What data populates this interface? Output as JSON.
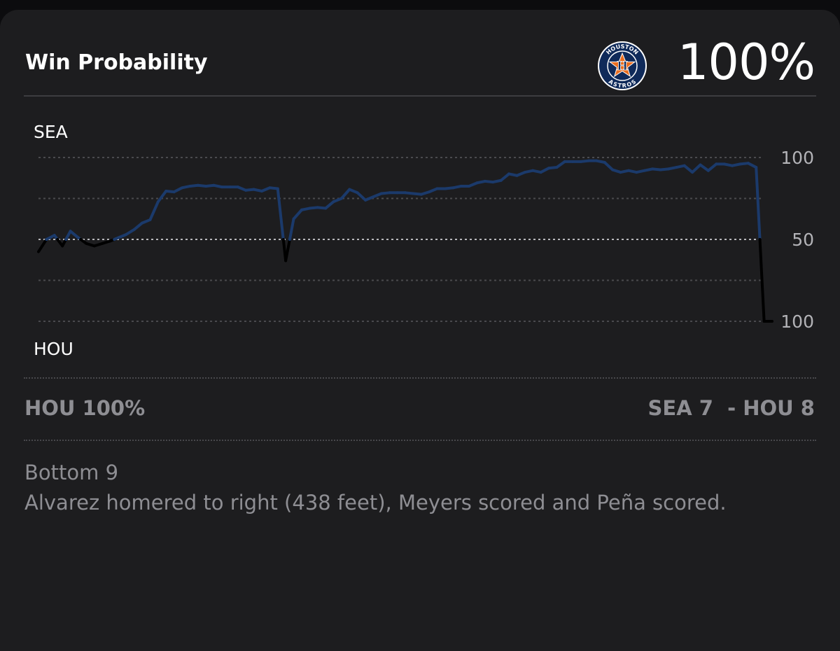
{
  "header": {
    "title": "Win Probability",
    "team_logo_icon": "houston-astros-logo",
    "probability": "100%"
  },
  "logo": {
    "ring_top": "HOUSTON",
    "ring_bottom": "ASTROS",
    "colors": {
      "navy": "#0f2a5a",
      "orange": "#eb6e1f",
      "white": "#ffffff"
    }
  },
  "chart_data": {
    "type": "line",
    "top_label": "SEA",
    "bottom_label": "HOU",
    "y_ticks": [
      "100",
      "50",
      "100"
    ],
    "ylim": [
      -100,
      100
    ],
    "y_note": "positive = SEA win probability above 50, negative = HOU",
    "grid": "dotted",
    "series": [
      {
        "color": "#1b3a6b",
        "segment_color_below_midline": "#000000",
        "x": [
          0,
          1,
          2,
          3,
          4,
          5,
          6,
          7,
          8,
          9,
          10,
          11,
          12,
          13,
          14,
          15,
          16,
          17,
          18,
          19,
          20,
          21,
          22,
          23,
          24,
          25,
          26,
          27,
          28,
          29,
          30,
          31,
          32,
          33,
          34,
          35,
          36,
          37,
          38,
          39,
          40,
          41,
          42,
          43,
          44,
          45,
          46,
          47,
          48,
          49,
          50,
          51,
          52,
          53,
          54,
          55,
          56,
          57,
          58,
          59,
          60,
          61,
          62,
          63,
          64,
          65,
          66,
          67,
          68,
          69,
          70,
          71,
          72,
          73,
          74,
          75,
          76,
          77,
          78,
          79,
          80,
          81,
          82,
          83,
          84,
          85,
          86,
          87,
          88,
          89,
          90,
          91,
          92
        ],
        "values": [
          -15,
          0,
          5,
          -8,
          10,
          2,
          -5,
          -8,
          -5,
          -2,
          2,
          6,
          12,
          20,
          24,
          46,
          59,
          58,
          63,
          65,
          66,
          65,
          66,
          64,
          64,
          64,
          60,
          61,
          59,
          63,
          62,
          -26,
          25,
          36,
          38,
          39,
          38,
          46,
          50,
          61,
          57,
          48,
          52,
          56,
          57,
          57,
          57,
          56,
          55,
          58,
          62,
          62,
          63,
          65,
          65,
          69,
          71,
          70,
          72,
          80,
          78,
          82,
          84,
          82,
          87,
          88,
          95,
          95,
          95,
          96,
          96,
          94,
          85,
          82,
          84,
          82,
          84,
          86,
          85,
          86,
          88,
          90,
          82,
          91,
          84,
          92,
          92,
          90,
          92,
          93,
          88,
          -100,
          -100
        ]
      }
    ]
  },
  "summary": {
    "leader": "HOU 100%",
    "score": "SEA 7  - HOU 8"
  },
  "play": {
    "inning": "Bottom 9",
    "description": "Alvarez homered to right (438 feet), Meyers scored and Peña scored."
  }
}
